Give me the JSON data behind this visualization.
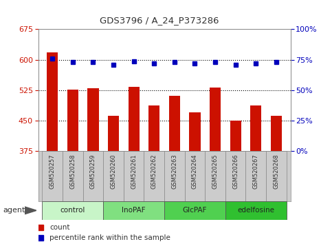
{
  "title": "GDS3796 / A_24_P373286",
  "samples": [
    "GSM520257",
    "GSM520258",
    "GSM520259",
    "GSM520260",
    "GSM520261",
    "GSM520262",
    "GSM520263",
    "GSM520264",
    "GSM520265",
    "GSM520266",
    "GSM520267",
    "GSM520268"
  ],
  "counts": [
    618,
    527,
    530,
    463,
    533,
    487,
    511,
    470,
    532,
    450,
    487,
    463
  ],
  "percentile_ranks": [
    76,
    73,
    73,
    71,
    74,
    72,
    73,
    72,
    73,
    71,
    72,
    73
  ],
  "groups": [
    {
      "label": "control",
      "start": 0,
      "end": 3,
      "color": "#c8f5c8"
    },
    {
      "label": "InoPAF",
      "start": 3,
      "end": 6,
      "color": "#80e080"
    },
    {
      "label": "GlcPAF",
      "start": 6,
      "end": 9,
      "color": "#50d050"
    },
    {
      "label": "edelfosine",
      "start": 9,
      "end": 12,
      "color": "#30c030"
    }
  ],
  "ylim_left": [
    375,
    675
  ],
  "yticks_left": [
    375,
    450,
    525,
    600,
    675
  ],
  "ylim_right": [
    0,
    100
  ],
  "yticks_right": [
    0,
    25,
    50,
    75,
    100
  ],
  "bar_color": "#cc1100",
  "dot_color": "#0000bb",
  "grid_color": "#000000",
  "bg_color": "#ffffff",
  "label_count": "count",
  "label_pct": "percentile rank within the sample",
  "agent_label": "agent",
  "sample_bg": "#cccccc",
  "group_border": "#555555"
}
